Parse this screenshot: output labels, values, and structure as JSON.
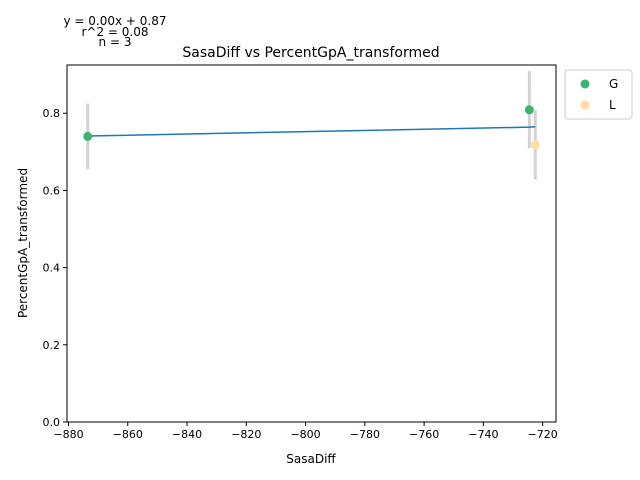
{
  "chart_data": {
    "type": "scatter",
    "title": "SasaDiff vs PercentGpA_transformed",
    "xlabel": "SasaDiff",
    "ylabel": "PercentGpA_transformed",
    "xlim": [
      -880.5,
      -715.5
    ],
    "ylim": [
      0.0,
      0.925
    ],
    "xticks": [
      -880,
      -860,
      -840,
      -820,
      -800,
      -780,
      -760,
      -740,
      -720
    ],
    "yticks": [
      0.0,
      0.2,
      0.4,
      0.6,
      0.8
    ],
    "grid": false,
    "legend_position": "outside-top-right",
    "series": [
      {
        "name": "G",
        "color": "#3cb371",
        "points": [
          {
            "x": -873.5,
            "y": 0.74,
            "err": 0.085
          },
          {
            "x": -724.5,
            "y": 0.809,
            "err": 0.1
          }
        ]
      },
      {
        "name": "L",
        "color": "#ffdea0",
        "points": [
          {
            "x": -722.5,
            "y": 0.718,
            "err": 0.09
          }
        ]
      }
    ],
    "regression": {
      "color": "#1f77b4",
      "x": [
        -873.5,
        -724.5,
        -722.5
      ],
      "y": [
        0.741,
        0.764,
        0.765
      ]
    },
    "error_bar_color": "#d3d3d3",
    "annotations": {
      "equation": "y = 0.00x + 0.87",
      "r2": "r^2 = 0.08",
      "n": "n = 3"
    }
  }
}
